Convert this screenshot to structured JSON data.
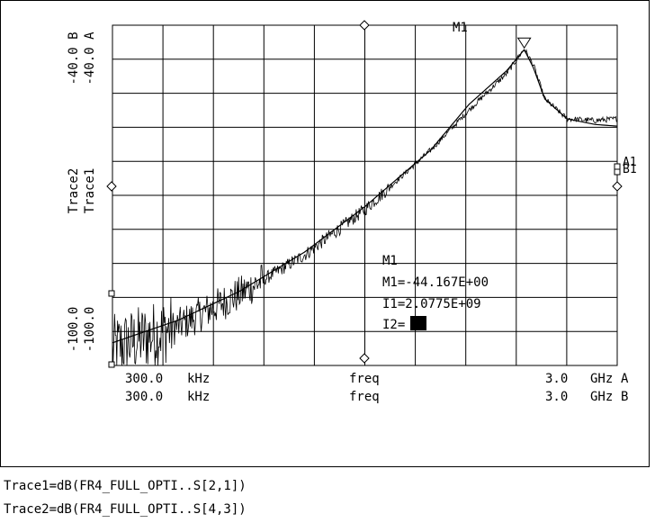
{
  "chart_data": {
    "type": "line",
    "x_axis": {
      "scale": "log",
      "label_a": "freq",
      "label_b": "freq",
      "start_a": "300.0",
      "start_b": "300.0",
      "start_unit_a": "kHz",
      "start_unit_b": "kHz",
      "stop_a": "3.0",
      "stop_b": "3.0",
      "stop_unit_a": "GHz",
      "stop_unit_b": "GHz",
      "suffix_a": "A",
      "suffix_b": "B",
      "range_hz": [
        300000,
        3000000000
      ]
    },
    "y_axis": {
      "top_a": "-40.0 A",
      "top_b": "-40.0 B",
      "bottom_a": "-100.0",
      "bottom_b": "-100.0",
      "label_a": "Trace1",
      "label_b": "Trace2",
      "range_db": [
        -100,
        -40
      ]
    },
    "grid": true,
    "grid_divisions": [
      10,
      10
    ],
    "series": [
      {
        "name": "Trace1",
        "end_label": "A1",
        "style": "smooth",
        "points": [
          [
            300000,
            -96
          ],
          [
            1000000,
            -92
          ],
          [
            3000000,
            -87
          ],
          [
            10000000,
            -80
          ],
          [
            30000000,
            -72
          ],
          [
            100000000,
            -62
          ],
          [
            200000000,
            -54
          ],
          [
            400000000,
            -48
          ],
          [
            550000000,
            -44.3
          ],
          [
            650000000,
            -47.5
          ],
          [
            800000000,
            -53
          ],
          [
            1200000000,
            -56.5
          ],
          [
            2000000000,
            -57.5
          ],
          [
            3000000000,
            -57.8
          ]
        ]
      },
      {
        "name": "Trace2",
        "end_label": "B1",
        "style": "noisy",
        "points": [
          [
            300000,
            -97
          ],
          [
            1000000,
            -93
          ],
          [
            3000000,
            -87.5
          ],
          [
            10000000,
            -80.5
          ],
          [
            30000000,
            -72.5
          ],
          [
            100000000,
            -62
          ],
          [
            200000000,
            -55
          ],
          [
            400000000,
            -48.5
          ],
          [
            550000000,
            -44.167
          ],
          [
            650000000,
            -47
          ],
          [
            800000000,
            -53
          ],
          [
            1200000000,
            -56.5
          ],
          [
            2000000000,
            -56.8
          ],
          [
            3000000000,
            -56.5
          ]
        ]
      }
    ],
    "marker": {
      "name": "M1",
      "freq_hz": 550000000,
      "value_db": -44.167,
      "m1_text": "M1=-44.167E+00",
      "i1_text": "I1=2.0775E+09",
      "i2_text": "I2="
    }
  },
  "legend": {
    "trace1": "Trace1=dB(FR4_FULL_OPTI..S[2,1])",
    "trace2": "Trace2=dB(FR4_FULL_OPTI..S[4,3])"
  }
}
